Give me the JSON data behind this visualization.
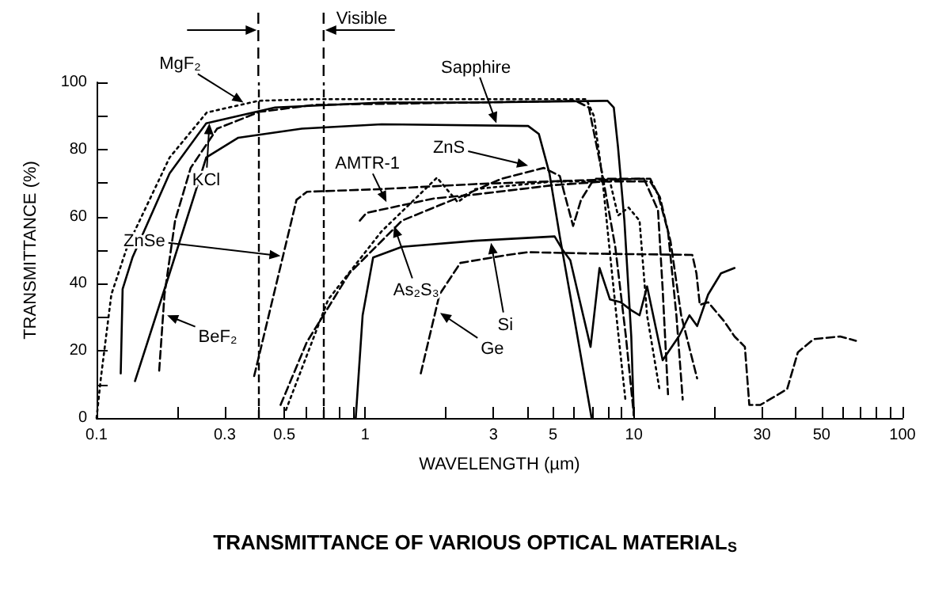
{
  "chart_data": {
    "type": "line",
    "title": "TRANSMITTANCE OF VARIOUS OPTICAL MATERIAL$_{S}$",
    "xlabel": "WAVELENGTH (µm)",
    "ylabel": "TRANSMITTANCE (%)",
    "log": "x",
    "xlim": [
      0.1,
      100
    ],
    "ylim": [
      0,
      100
    ],
    "xticks": [
      0.1,
      {
        "value": 0.2,
        "label": null
      },
      0.3,
      {
        "value": 0.4,
        "label": null
      },
      0.5,
      {
        "value": 0.6,
        "label": null
      },
      {
        "value": 0.7,
        "label": null
      },
      {
        "value": 0.8,
        "label": null
      },
      {
        "value": 0.9,
        "label": null
      },
      1,
      {
        "value": 2,
        "label": null
      },
      3,
      {
        "value": 4,
        "label": null
      },
      5,
      {
        "value": 6,
        "label": null
      },
      {
        "value": 7,
        "label": null
      },
      {
        "value": 8,
        "label": null
      },
      {
        "value": 9,
        "label": null
      },
      10,
      {
        "value": 20,
        "label": null
      },
      30,
      {
        "value": 40,
        "label": null
      },
      50,
      {
        "value": 60,
        "label": null
      },
      {
        "value": 70,
        "label": null
      },
      {
        "value": 80,
        "label": null
      },
      {
        "value": 90,
        "label": null
      },
      100
    ],
    "yticks": [
      0,
      {
        "value": 10,
        "label": null
      },
      20,
      {
        "value": 30,
        "label": null
      },
      40,
      {
        "value": 50,
        "label": null
      },
      60,
      {
        "value": 70,
        "label": null
      },
      80,
      {
        "value": 90,
        "label": null
      },
      100
    ],
    "ref_lines": [
      {
        "axis": "x",
        "value": 0.4,
        "line_style": "dashed"
      },
      {
        "axis": "x",
        "value": 0.7,
        "label": "Visible",
        "line_style": "dashed"
      }
    ],
    "annotations": [
      {
        "text": "MgF₂",
        "x": 0.352,
        "y": 94
      },
      {
        "text": "KCl",
        "x": 0.263,
        "y": 87.8
      },
      {
        "text": "Sapphire",
        "x": 3.08,
        "y": 87.8
      },
      {
        "text": "ZnS",
        "x": 4.04,
        "y": 75.2
      },
      {
        "text": "AMTR-1",
        "x": 1.2,
        "y": 64.3
      },
      {
        "text": "ZnSe",
        "x": 0.484,
        "y": 48.3
      },
      {
        "text": "As₂S₃",
        "x": 1.28,
        "y": 57.2
      },
      {
        "text": "BeF₂",
        "x": 0.183,
        "y": 30.6
      },
      {
        "text": "Si",
        "x": 2.94,
        "y": 52.2
      },
      {
        "text": "Ge",
        "x": 1.9,
        "y": 31.3
      }
    ],
    "series": [
      {
        "color": "#000000",
        "line_style": "dotted",
        "x": [
          0.1,
          0.1037,
          0.1135,
          0.13,
          0.187,
          0.257,
          0.4,
          0.65,
          2.57,
          6.65,
          7.1,
          7.6,
          8.15,
          8.7,
          9.3
        ],
        "values": [
          0,
          11.8,
          36.8,
          51,
          77.6,
          91,
          94.5,
          95,
          95,
          95,
          90,
          73,
          49,
          27,
          5.5
        ]
      },
      {
        "color": "#000000",
        "line_style": "solid",
        "x": [
          0.123,
          0.125,
          0.136,
          0.187,
          0.256,
          0.462,
          1.15,
          2.57,
          7.98,
          8.42,
          8.73,
          9.22,
          9.78,
          10
        ],
        "values": [
          13.3,
          38.4,
          47.8,
          72.9,
          87.8,
          92.5,
          94,
          94,
          94.5,
          92.5,
          80.7,
          58.8,
          24.3,
          0.8
        ]
      },
      {
        "color": "#000000",
        "line_style": "solid",
        "x": [
          0.139,
          0.187,
          0.256,
          0.337,
          0.581,
          1.15,
          4.04,
          4.43,
          4.85,
          5.3,
          6.07,
          6.96
        ],
        "values": [
          11,
          43.1,
          77.6,
          83.5,
          86.2,
          87.5,
          87,
          84.6,
          72.9,
          54.1,
          27.4,
          0
        ]
      },
      {
        "color": "#000000",
        "line_style": "dashed",
        "x": [
          0.171,
          0.179,
          0.196,
          0.224,
          0.281,
          0.404,
          0.65,
          2.57,
          6.07,
          6.8,
          7.62,
          8.53,
          9.34,
          10
        ],
        "values": [
          14.1,
          36.8,
          58.8,
          74.5,
          86.2,
          91.2,
          93.3,
          94,
          94.5,
          92.5,
          72.9,
          50.9,
          24.3,
          0.8
        ]
      },
      {
        "color": "#000000",
        "line_style": "dashed",
        "x": [
          0.386,
          0.555,
          0.607,
          1.15,
          2.57,
          6.36,
          11.5,
          12.3,
          13.4,
          14.4,
          15.2
        ],
        "values": [
          12.5,
          65,
          67.4,
          68.2,
          69.7,
          70.8,
          71.3,
          66.6,
          55.6,
          30.6,
          5.5
        ]
      },
      {
        "color": "#000000",
        "line_style": "dashed",
        "x": [
          0.955,
          1.01,
          1.8,
          2.57,
          5.07,
          7.98,
          11.5,
          12.5,
          13.7,
          15,
          17.2
        ],
        "values": [
          58.8,
          61.1,
          65.4,
          66.6,
          69.4,
          70.5,
          70.5,
          65.8,
          52.5,
          30.6,
          11.8
        ]
      },
      {
        "color": "#000000",
        "line_style": "dashed",
        "x": [
          0.484,
          0.607,
          0.873,
          1.37,
          2.37,
          3.22,
          4.62,
          5.3,
          5.94,
          6.36,
          7.12,
          10.9,
          12.3,
          12.8,
          13.4
        ],
        "values": [
          3.9,
          22.7,
          43.1,
          58.8,
          66.6,
          71.3,
          74.5,
          72.1,
          57.2,
          65,
          71.3,
          71.3,
          61.9,
          38.4,
          7.1
        ]
      },
      {
        "color": "#000000",
        "line_style": "dotted",
        "x": [
          0.507,
          0.728,
          1.15,
          1.85,
          2.21,
          2.57,
          5.07,
          8.15,
          8.73,
          9.56,
          10.5,
          11.2,
          12.5
        ],
        "values": [
          2.4,
          35.3,
          55.6,
          71.6,
          64.3,
          68.2,
          70.5,
          70.5,
          60.3,
          62.7,
          58.8,
          30.6,
          7.8
        ]
      },
      {
        "color": "#000000",
        "line_style": "solid",
        "x": [
          0.922,
          0.978,
          1.07,
          1.37,
          2.57,
          5.07,
          5.42,
          5.8,
          6.21,
          6.9,
          7.45,
          8.15,
          8.93,
          9.78,
          10.5,
          11.2,
          12.8,
          14.7,
          16.1,
          17.2,
          18.9,
          21.1,
          23.7
        ],
        "values": [
          0,
          30.6,
          47.8,
          51,
          52.8,
          54.1,
          50.2,
          47,
          36.8,
          21.2,
          44.7,
          35.3,
          34.5,
          32.1,
          30.6,
          39.2,
          17.2,
          24.3,
          30.6,
          27.4,
          36.8,
          43.1,
          44.7
        ]
      },
      {
        "color": "#000000",
        "line_style": "dashed",
        "x": [
          1.61,
          1.89,
          2.26,
          3.4,
          4.04,
          7.98,
          16.5,
          17.1,
          17.6,
          18.9,
          21.6,
          23.7,
          25.9,
          26.9,
          29.6,
          37.2,
          40.8,
          46.7,
          58.6,
          67.1
        ],
        "values": [
          13.3,
          36.8,
          46.2,
          48.6,
          49.4,
          48.9,
          48.6,
          43.1,
          33.7,
          34.5,
          29,
          24.3,
          21.2,
          3.9,
          3.9,
          8.6,
          19.6,
          23.5,
          24.3,
          23
        ]
      }
    ]
  }
}
